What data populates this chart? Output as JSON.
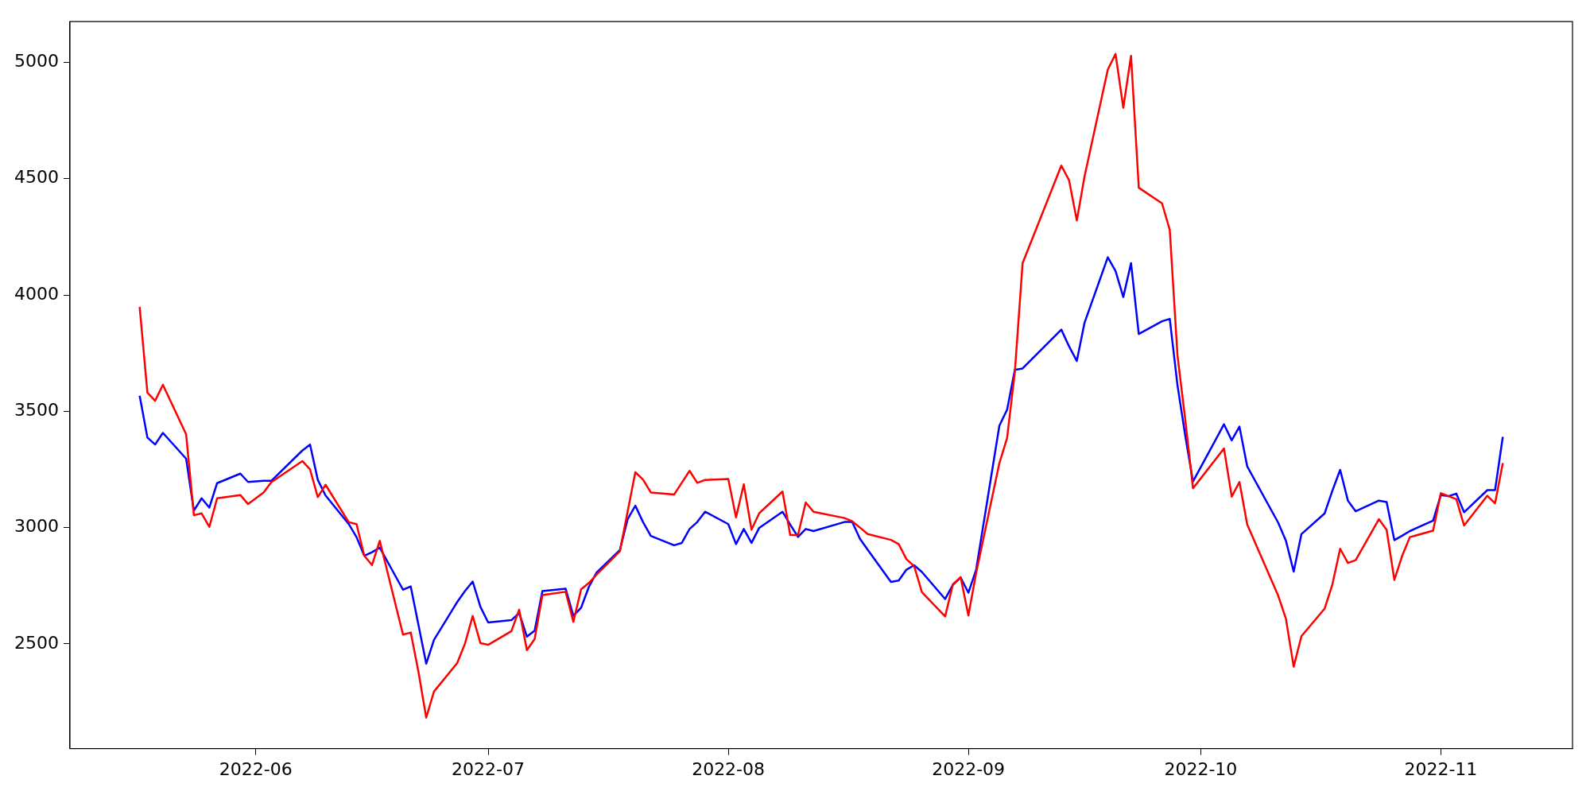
{
  "chart_data": {
    "type": "line",
    "x": [
      "2022-05-17",
      "2022-05-18",
      "2022-05-19",
      "2022-05-20",
      "2022-05-23",
      "2022-05-24",
      "2022-05-25",
      "2022-05-26",
      "2022-05-27",
      "2022-05-30",
      "2022-05-31",
      "2022-06-02",
      "2022-06-03",
      "2022-06-07",
      "2022-06-08",
      "2022-06-09",
      "2022-06-10",
      "2022-06-13",
      "2022-06-14",
      "2022-06-15",
      "2022-06-16",
      "2022-06-17",
      "2022-06-20",
      "2022-06-21",
      "2022-06-22",
      "2022-06-23",
      "2022-06-24",
      "2022-06-27",
      "2022-06-28",
      "2022-06-29",
      "2022-06-30",
      "2022-07-01",
      "2022-07-04",
      "2022-07-05",
      "2022-07-06",
      "2022-07-07",
      "2022-07-08",
      "2022-07-11",
      "2022-07-12",
      "2022-07-13",
      "2022-07-14",
      "2022-07-15",
      "2022-07-18",
      "2022-07-19",
      "2022-07-20",
      "2022-07-21",
      "2022-07-22",
      "2022-07-25",
      "2022-07-26",
      "2022-07-27",
      "2022-07-28",
      "2022-07-29",
      "2022-08-01",
      "2022-08-02",
      "2022-08-03",
      "2022-08-04",
      "2022-08-05",
      "2022-08-08",
      "2022-08-09",
      "2022-08-10",
      "2022-08-11",
      "2022-08-12",
      "2022-08-16",
      "2022-08-17",
      "2022-08-18",
      "2022-08-19",
      "2022-08-22",
      "2022-08-23",
      "2022-08-24",
      "2022-08-25",
      "2022-08-26",
      "2022-08-29",
      "2022-08-30",
      "2022-08-31",
      "2022-09-01",
      "2022-09-02",
      "2022-09-05",
      "2022-09-06",
      "2022-09-07",
      "2022-09-08",
      "2022-09-13",
      "2022-09-14",
      "2022-09-15",
      "2022-09-16",
      "2022-09-19",
      "2022-09-20",
      "2022-09-21",
      "2022-09-22",
      "2022-09-23",
      "2022-09-26",
      "2022-09-27",
      "2022-09-28",
      "2022-09-29",
      "2022-09-30",
      "2022-10-04",
      "2022-10-05",
      "2022-10-06",
      "2022-10-07",
      "2022-10-11",
      "2022-10-12",
      "2022-10-13",
      "2022-10-14",
      "2022-10-17",
      "2022-10-18",
      "2022-10-19",
      "2022-10-20",
      "2022-10-21",
      "2022-10-24",
      "2022-10-25",
      "2022-10-26",
      "2022-10-27",
      "2022-10-28",
      "2022-10-31",
      "2022-11-01",
      "2022-11-02",
      "2022-11-03",
      "2022-11-04",
      "2022-11-07",
      "2022-11-08",
      "2022-11-09"
    ],
    "series": [
      {
        "color": "#ff0000",
        "values": [
          3948,
          3580,
          3545,
          3614,
          3401,
          3053,
          3061,
          3003,
          3126,
          3140,
          3101,
          3151,
          3195,
          3286,
          3250,
          3131,
          3184,
          3023,
          3015,
          2879,
          2839,
          2943,
          2540,
          2549,
          2379,
          2183,
          2295,
          2418,
          2501,
          2620,
          2503,
          2496,
          2555,
          2647,
          2473,
          2521,
          2710,
          2724,
          2595,
          2735,
          2762,
          2798,
          2898,
          3068,
          3238,
          3206,
          3151,
          3142,
          3193,
          3244,
          3192,
          3205,
          3209,
          3044,
          3186,
          2991,
          3062,
          3155,
          2968,
          2968,
          3108,
          3068,
          3041,
          3027,
          3000,
          2972,
          2947,
          2929,
          2864,
          2834,
          2722,
          2618,
          2756,
          2787,
          2622,
          2805,
          3277,
          3385,
          3670,
          4137,
          4556,
          4493,
          4320,
          4510,
          4969,
          5036,
          4805,
          5028,
          4461,
          4394,
          4280,
          3739,
          3464,
          3169,
          3340,
          3133,
          3196,
          3013,
          2707,
          2608,
          2402,
          2533,
          2652,
          2756,
          2909,
          2848,
          2860,
          3036,
          2990,
          2775,
          2878,
          2959,
          2987,
          3148,
          3135,
          3122,
          3009,
          3137,
          3104,
          3277
        ]
      },
      {
        "color": "#0000ff",
        "values": [
          3567,
          3387,
          3357,
          3407,
          3296,
          3073,
          3126,
          3086,
          3191,
          3232,
          3196,
          3201,
          3201,
          3331,
          3357,
          3205,
          3138,
          3015,
          2959,
          2879,
          2894,
          2914,
          2733,
          2747,
          2581,
          2415,
          2517,
          2680,
          2727,
          2768,
          2659,
          2592,
          2602,
          2633,
          2531,
          2557,
          2727,
          2737,
          2621,
          2656,
          2745,
          2807,
          2903,
          3036,
          3094,
          3023,
          2964,
          2924,
          2934,
          2994,
          3024,
          3068,
          3015,
          2929,
          2994,
          2934,
          2999,
          3068,
          3013,
          2960,
          2994,
          2985,
          3024,
          3024,
          2952,
          2905,
          2766,
          2772,
          2819,
          2838,
          2809,
          2693,
          2754,
          2785,
          2720,
          2819,
          3438,
          3507,
          3678,
          3684,
          3851,
          3779,
          3716,
          3881,
          4162,
          4103,
          3991,
          4137,
          3832,
          3887,
          3897,
          3611,
          3395,
          3198,
          3444,
          3375,
          3434,
          3263,
          3021,
          2943,
          2811,
          2972,
          3061,
          3159,
          3248,
          3116,
          3070,
          3116,
          3110,
          2946,
          2965,
          2985,
          3030,
          3140,
          3135,
          3146,
          3066,
          3161,
          3161,
          3390
        ]
      }
    ],
    "xlim": [
      "2022-05-08",
      "2022-11-18"
    ],
    "xticks": [
      {
        "value": "2022-06-01",
        "label": "2022-06"
      },
      {
        "value": "2022-07-01",
        "label": "2022-07"
      },
      {
        "value": "2022-08-01",
        "label": "2022-08"
      },
      {
        "value": "2022-09-01",
        "label": "2022-09"
      },
      {
        "value": "2022-10-01",
        "label": "2022-10"
      },
      {
        "value": "2022-11-01",
        "label": "2022-11"
      }
    ],
    "ylim": [
      2050,
      5175
    ],
    "yticks": [
      2500,
      3000,
      3500,
      4000,
      4500,
      5000
    ],
    "grid": false,
    "marker": "none",
    "line_style": "solid"
  }
}
